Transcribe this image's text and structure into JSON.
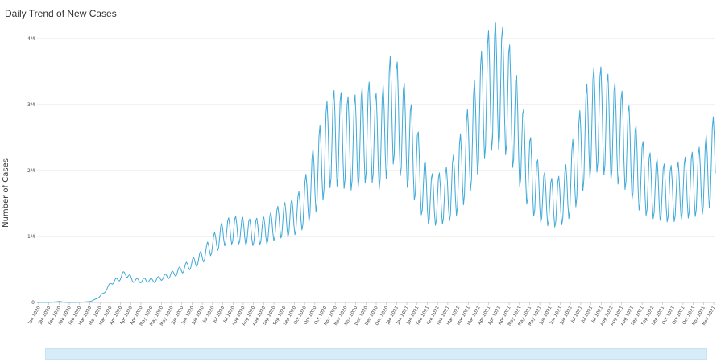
{
  "chart_data": {
    "type": "line",
    "title": "Daily Trend of New Cases",
    "ylabel": "Number of Cases",
    "xlabel": "",
    "ylim": [
      0,
      4000000
    ],
    "y_ticks": [
      0,
      1000000,
      2000000,
      3000000,
      4000000
    ],
    "y_tick_labels": [
      "0",
      "1M",
      "2M",
      "3M",
      "4M"
    ],
    "x_start": "2020-01-22",
    "x_end": "2021-11-28",
    "x_tick_labels": [
      "Jan 2020",
      "Jan 2020",
      "Feb 2020",
      "Feb 2020",
      "Feb 2020",
      "Mar 2020",
      "Mar 2020",
      "Mar 2020",
      "Apr 2020",
      "Apr 2020",
      "Apr 2020",
      "May 2020",
      "May 2020",
      "May 2020",
      "Jun 2020",
      "Jun 2020",
      "Jun 2020",
      "Jul 2020",
      "Jul 2020",
      "Jul 2020",
      "Aug 2020",
      "Aug 2020",
      "Aug 2020",
      "Sep 2020",
      "Sep 2020",
      "Sep 2020",
      "Oct 2020",
      "Oct 2020",
      "Oct 2020",
      "Nov 2020",
      "Nov 2020",
      "Nov 2020",
      "Dec 2020",
      "Dec 2020",
      "Dec 2020",
      "Jan 2021",
      "Jan 2021",
      "Jan 2021",
      "Feb 2021",
      "Feb 2021",
      "Feb 2021",
      "Mar 2021",
      "Mar 2021",
      "Mar 2021",
      "Apr 2021",
      "Apr 2021",
      "Apr 2021",
      "May 2021",
      "May 2021",
      "May 2021",
      "Jun 2021",
      "Jun 2021",
      "Jun 2021",
      "Jul 2021",
      "Jul 2021",
      "Jul 2021",
      "Aug 2021",
      "Aug 2021",
      "Aug 2021",
      "Sep 2021",
      "Sep 2021",
      "Sep 2021",
      "Oct 2021",
      "Oct 2021",
      "Oct 2021",
      "Nov 2021",
      "Nov 2021"
    ],
    "series": [
      {
        "name": "",
        "color": "#3fa9d8",
        "points": [
          [
            "2020-01-22",
            500
          ],
          [
            "2020-02-05",
            3000
          ],
          [
            "2020-02-13",
            15000
          ],
          [
            "2020-02-20",
            2000
          ],
          [
            "2020-03-01",
            2000
          ],
          [
            "2020-03-10",
            8000
          ],
          [
            "2020-03-15",
            15000
          ],
          [
            "2020-03-22",
            60000
          ],
          [
            "2020-03-29",
            150000
          ],
          [
            "2020-04-05",
            300000
          ],
          [
            "2020-04-12",
            350000
          ],
          [
            "2020-04-19",
            450000
          ],
          [
            "2020-04-26",
            340000
          ],
          [
            "2020-05-03",
            330000
          ],
          [
            "2020-05-10",
            340000
          ],
          [
            "2020-05-17",
            330000
          ],
          [
            "2020-05-24",
            370000
          ],
          [
            "2020-05-31",
            400000
          ],
          [
            "2020-06-07",
            440000
          ],
          [
            "2020-06-14",
            500000
          ],
          [
            "2020-06-21",
            560000
          ],
          [
            "2020-06-28",
            620000
          ],
          [
            "2020-07-05",
            700000
          ],
          [
            "2020-07-12",
            830000
          ],
          [
            "2020-07-19",
            940000
          ],
          [
            "2020-07-26",
            1050000
          ],
          [
            "2020-08-02",
            1090000
          ],
          [
            "2020-08-09",
            1100000
          ],
          [
            "2020-08-16",
            1080000
          ],
          [
            "2020-08-23",
            1060000
          ],
          [
            "2020-08-30",
            1080000
          ],
          [
            "2020-09-06",
            1090000
          ],
          [
            "2020-09-13",
            1160000
          ],
          [
            "2020-09-20",
            1230000
          ],
          [
            "2020-09-27",
            1260000
          ],
          [
            "2020-10-04",
            1300000
          ],
          [
            "2020-10-11",
            1400000
          ],
          [
            "2020-10-18",
            1620000
          ],
          [
            "2020-10-25",
            1900000
          ],
          [
            "2020-11-01",
            2150000
          ],
          [
            "2020-11-08",
            2450000
          ],
          [
            "2020-11-15",
            2500000
          ],
          [
            "2020-11-22",
            2450000
          ],
          [
            "2020-11-29",
            2400000
          ],
          [
            "2020-12-06",
            2450000
          ],
          [
            "2020-12-13",
            2550000
          ],
          [
            "2020-12-20",
            2600000
          ],
          [
            "2020-12-27",
            2400000
          ],
          [
            "2021-01-03",
            2600000
          ],
          [
            "2021-01-10",
            3000000
          ],
          [
            "2021-01-17",
            2750000
          ],
          [
            "2021-01-24",
            2500000
          ],
          [
            "2021-01-31",
            2250000
          ],
          [
            "2021-02-07",
            1900000
          ],
          [
            "2021-02-14",
            1600000
          ],
          [
            "2021-02-21",
            1550000
          ],
          [
            "2021-02-28",
            1580000
          ],
          [
            "2021-03-07",
            1650000
          ],
          [
            "2021-03-14",
            1800000
          ],
          [
            "2021-03-21",
            2050000
          ],
          [
            "2021-03-28",
            2350000
          ],
          [
            "2021-04-04",
            2700000
          ],
          [
            "2021-04-11",
            3050000
          ],
          [
            "2021-04-18",
            3250000
          ],
          [
            "2021-04-25",
            3300000
          ],
          [
            "2021-05-02",
            3200000
          ],
          [
            "2021-05-09",
            2950000
          ],
          [
            "2021-05-16",
            2550000
          ],
          [
            "2021-05-23",
            2150000
          ],
          [
            "2021-05-30",
            1850000
          ],
          [
            "2021-06-06",
            1650000
          ],
          [
            "2021-06-13",
            1550000
          ],
          [
            "2021-06-20",
            1500000
          ],
          [
            "2021-06-27",
            1550000
          ],
          [
            "2021-07-04",
            1700000
          ],
          [
            "2021-07-11",
            2000000
          ],
          [
            "2021-07-18",
            2350000
          ],
          [
            "2021-07-25",
            2650000
          ],
          [
            "2021-08-01",
            2800000
          ],
          [
            "2021-08-08",
            2750000
          ],
          [
            "2021-08-15",
            2650000
          ],
          [
            "2021-08-22",
            2550000
          ],
          [
            "2021-08-29",
            2450000
          ],
          [
            "2021-09-05",
            2250000
          ],
          [
            "2021-09-12",
            2000000
          ],
          [
            "2021-09-19",
            1850000
          ],
          [
            "2021-09-26",
            1750000
          ],
          [
            "2021-10-03",
            1700000
          ],
          [
            "2021-10-10",
            1650000
          ],
          [
            "2021-10-17",
            1650000
          ],
          [
            "2021-10-24",
            1700000
          ],
          [
            "2021-10-31",
            1750000
          ],
          [
            "2021-11-07",
            1800000
          ],
          [
            "2021-11-14",
            1850000
          ],
          [
            "2021-11-21",
            2000000
          ],
          [
            "2021-11-28",
            2250000
          ]
        ]
      }
    ],
    "grid": true,
    "legend": "none"
  },
  "scrollbar": {
    "color": "#d6ecf7"
  }
}
